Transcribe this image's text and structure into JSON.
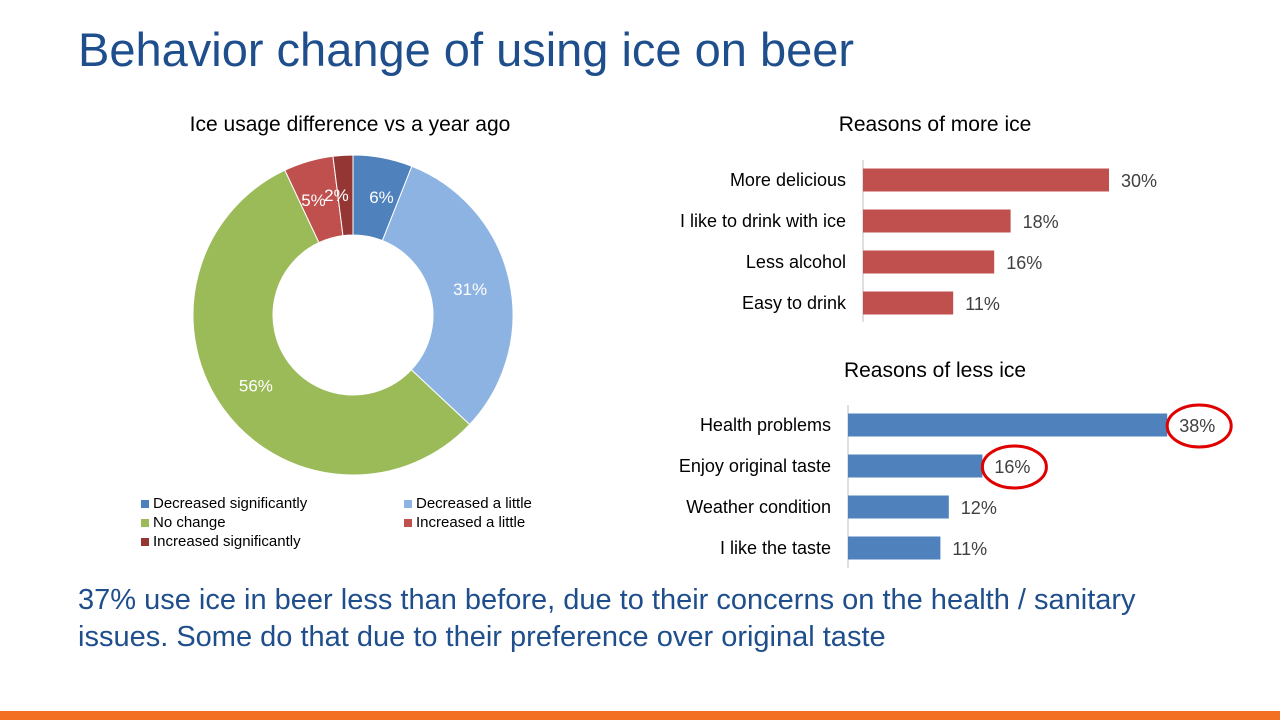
{
  "slide": {
    "title": "Behavior change of using ice on beer",
    "conclusion": "37% use ice in beer less than before, due to their concerns on the health / sanitary issues. Some do that due to their preference over original taste",
    "accent_color": "#f36f21",
    "title_color": "#1f4e8c"
  },
  "chart_data": [
    {
      "type": "pie",
      "variant": "donut",
      "title": "Ice usage difference vs a year ago",
      "categories": [
        "Decreased significantly",
        "Decreased a little",
        "No change",
        "Increased a little",
        "Increased significantly"
      ],
      "values": [
        6,
        31,
        56,
        5,
        2
      ],
      "labels": [
        "6%",
        "31%",
        "56%",
        "5%",
        "2%"
      ],
      "colors": [
        "#4f81bd",
        "#8db3e2",
        "#9bbb59",
        "#c0504d",
        "#943634"
      ],
      "legend_position": "bottom"
    },
    {
      "type": "bar",
      "orientation": "horizontal",
      "title": "Reasons of more ice",
      "categories": [
        "More delicious",
        "I like to drink with ice",
        "Less alcohol",
        "Easy to drink"
      ],
      "values": [
        30,
        18,
        16,
        11
      ],
      "labels": [
        "30%",
        "18%",
        "16%",
        "11%"
      ],
      "color": "#c0504d"
    },
    {
      "type": "bar",
      "orientation": "horizontal",
      "title": "Reasons of less ice",
      "categories": [
        "Health problems",
        "Enjoy original taste",
        "Weather condition",
        "I like the taste"
      ],
      "values": [
        38,
        16,
        12,
        11
      ],
      "labels": [
        "38%",
        "16%",
        "12%",
        "11%"
      ],
      "color": "#4f81bd",
      "highlighted_labels": [
        "38%",
        "16%"
      ],
      "highlight_color": "#e00000"
    }
  ]
}
